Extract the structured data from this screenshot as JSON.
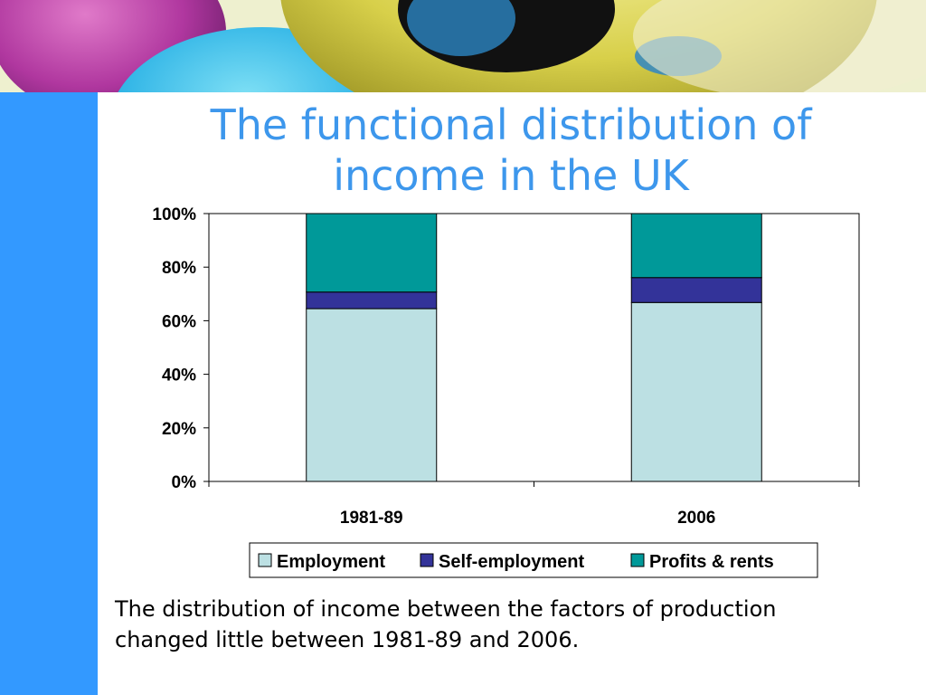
{
  "slide": {
    "title_lines": [
      "The functional distribution of",
      "income in the UK"
    ],
    "caption_lines": [
      "The distribution of income between the factors of production",
      "changed little between 1981-89 and 2006."
    ],
    "colors": {
      "sidebar": "#3399ff",
      "title": "#3d97ec"
    }
  },
  "chart_data": {
    "type": "bar",
    "stacked": true,
    "categories": [
      "1981-89",
      "2006"
    ],
    "series": [
      {
        "name": "Employment",
        "values": [
          64.5,
          66.8
        ],
        "color": "#bce0e3"
      },
      {
        "name": "Self-employment",
        "values": [
          6.2,
          9.3
        ],
        "color": "#333399"
      },
      {
        "name": "Profits & rents",
        "values": [
          29.3,
          23.9
        ],
        "color": "#009999"
      }
    ],
    "yticks": [
      "0%",
      "20%",
      "40%",
      "60%",
      "80%",
      "100%"
    ],
    "ylim": [
      0,
      100
    ],
    "legend": "bottom",
    "grid": false
  }
}
